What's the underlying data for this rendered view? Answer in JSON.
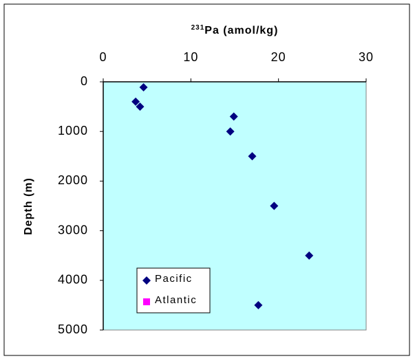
{
  "chart_data": {
    "type": "scatter",
    "x_label_superscript": "231",
    "x_label": "Pa (amol/kg)",
    "y_label": "Depth (m)",
    "xlim": [
      0,
      30
    ],
    "xticks": [
      0,
      10,
      20,
      30
    ],
    "ylim": [
      0,
      5000
    ],
    "yticks": [
      0,
      1000,
      2000,
      3000,
      4000,
      5000
    ],
    "y_inverted": true,
    "x_axis_position": "top",
    "plot_background": "#c0ffff",
    "legend": "lower-left",
    "series": [
      {
        "name": "Pacific",
        "color": "#000080",
        "marker": "diamond",
        "x": [
          4.6,
          3.7,
          4.2,
          14.9,
          14.5,
          17.0,
          19.5,
          23.5,
          17.7
        ],
        "y": [
          110,
          400,
          500,
          700,
          1000,
          1500,
          2500,
          3500,
          4500
        ]
      },
      {
        "name": "Atlantic",
        "color": "#ff00ff",
        "marker": "square",
        "x": [],
        "y": []
      }
    ]
  }
}
